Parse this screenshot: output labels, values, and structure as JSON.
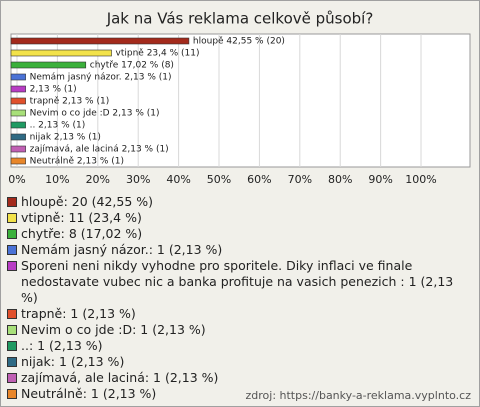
{
  "chart_data": {
    "type": "bar",
    "orientation": "horizontal",
    "title": "Jak na Vás reklama celkově působí?",
    "values": [
      42.55,
      23.4,
      17.02,
      2.13,
      2.13,
      2.13,
      2.13,
      2.13,
      2.13,
      2.13,
      2.13
    ],
    "value_labels": [
      "hloupě 42,55 % (20)",
      "vtipně 23,4 % (11)",
      "chytře 17,02 % (8)",
      "Nemám jasný názor. 2,13 % (1)",
      "2,13 % (1)",
      "trapně 2,13 % (1)",
      "Nevim o co jde :D 2,13 % (1)",
      ".. 2,13 % (1)",
      "nijak 2,13 % (1)",
      "zajímavá, ale laciná 2,13 % (1)",
      "Neutrálně 2,13 % (1)"
    ],
    "colors": [
      "#a32a1c",
      "#f2e24a",
      "#3bb03b",
      "#4a72d6",
      "#b83cc4",
      "#e0502c",
      "#a8e07a",
      "#1f9a62",
      "#2f6a84",
      "#c060b4",
      "#e8862a"
    ],
    "legend_labels": [
      "hloupě: 20 (42,55 %)",
      "vtipně: 11 (23,4 %)",
      "chytře: 8 (17,02 %)",
      "Nemám jasný názor.: 1 (2,13 %)",
      "Sporeni neni nikdy vyhodne pro sporitele. Diky inflaci ve finale nedostavate vubec nic a banka profituje na vasich penezich : 1 (2,13 %)",
      "trapně: 1 (2,13 %)",
      "Nevim o co jde :D: 1 (2,13 %)",
      "..: 1 (2,13 %)",
      "nijak: 1 (2,13 %)",
      "zajímavá, ale laciná: 1 (2,13 %)",
      "Neutrálně: 1 (2,13 %)"
    ],
    "xlim": [
      0,
      112
    ],
    "xticks": [
      {
        "value": 0,
        "label": "0%"
      },
      {
        "value": 10,
        "label": "10%"
      },
      {
        "value": 20,
        "label": "20%"
      },
      {
        "value": 30,
        "label": "30%"
      },
      {
        "value": 40,
        "label": "40%"
      },
      {
        "value": 50,
        "label": "50%"
      },
      {
        "value": 60,
        "label": "60%"
      },
      {
        "value": 70,
        "label": "70%"
      },
      {
        "value": 80,
        "label": "80%"
      },
      {
        "value": 90,
        "label": "90%"
      },
      {
        "value": 100,
        "label": "100%"
      }
    ],
    "grid": true,
    "source": "zdroj: https://banky-a-reklama.vyplnto.cz"
  }
}
